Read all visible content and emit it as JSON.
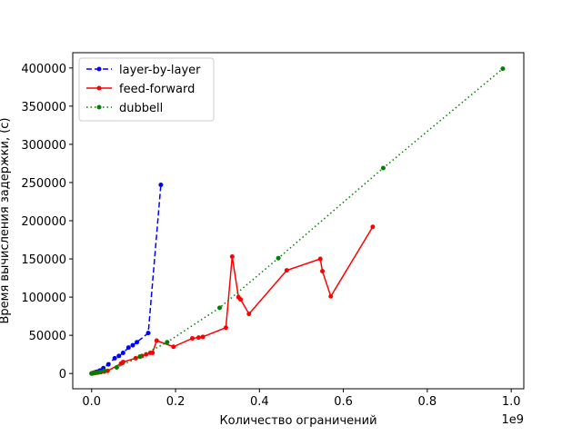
{
  "chart_data": {
    "type": "line",
    "xlabel": "Количество ограничений",
    "ylabel": "Время вычисления задержки, (с)",
    "x_offset_label": "1e9",
    "xlim": [
      -45000000,
      1030000000
    ],
    "ylim": [
      -20000,
      420000
    ],
    "x_ticks": [
      0,
      200000000,
      400000000,
      600000000,
      800000000,
      1000000000
    ],
    "x_tick_labels": [
      "0.0",
      "0.2",
      "0.4",
      "0.6",
      "0.8",
      "1.0"
    ],
    "y_ticks": [
      0,
      50000,
      100000,
      150000,
      200000,
      250000,
      300000,
      350000,
      400000
    ],
    "y_tick_labels": [
      "0",
      "50000",
      "100000",
      "150000",
      "200000",
      "250000",
      "300000",
      "350000",
      "400000"
    ],
    "grid": false,
    "legend_position": "top-left",
    "series": [
      {
        "name": "layer-by-layer",
        "color": "#0000ff",
        "linestyle": "dashed",
        "marker": "dot",
        "x": [
          0,
          2000000,
          4000000,
          7000000,
          10000000,
          14000000,
          20000000,
          28000000,
          40000000,
          55000000,
          65000000,
          75000000,
          88000000,
          98000000,
          108000000,
          135000000,
          165000000
        ],
        "y": [
          0,
          300,
          700,
          1200,
          1800,
          2500,
          4000,
          7000,
          12000,
          20000,
          23000,
          27000,
          34000,
          37000,
          41000,
          53000,
          247000
        ]
      },
      {
        "name": "feed-forward",
        "color": "#ff0000",
        "linestyle": "solid",
        "marker": "dot",
        "x": [
          0,
          3000000,
          6000000,
          10000000,
          15000000,
          22000000,
          30000000,
          38000000,
          70000000,
          75000000,
          105000000,
          120000000,
          130000000,
          140000000,
          145000000,
          155000000,
          195000000,
          240000000,
          255000000,
          265000000,
          320000000,
          335000000,
          350000000,
          355000000,
          375000000,
          465000000,
          545000000,
          550000000,
          570000000,
          670000000
        ],
        "y": [
          0,
          300,
          600,
          900,
          1200,
          1700,
          2500,
          3500,
          13000,
          15000,
          20000,
          23000,
          25000,
          27000,
          27000,
          43000,
          35000,
          46000,
          47000,
          48000,
          60000,
          153000,
          100000,
          97000,
          78000,
          135000,
          150000,
          134000,
          101000,
          192000
        ]
      },
      {
        "name": "dubbell",
        "color": "#008000",
        "linestyle": "dotted",
        "marker": "dot",
        "x": [
          0,
          5000000,
          12000000,
          20000000,
          30000000,
          60000000,
          115000000,
          180000000,
          305000000,
          445000000,
          695000000,
          980000000
        ],
        "y": [
          0,
          500,
          1200,
          2000,
          3500,
          8000,
          22000,
          41000,
          86000,
          151000,
          269000,
          399000
        ]
      }
    ]
  }
}
